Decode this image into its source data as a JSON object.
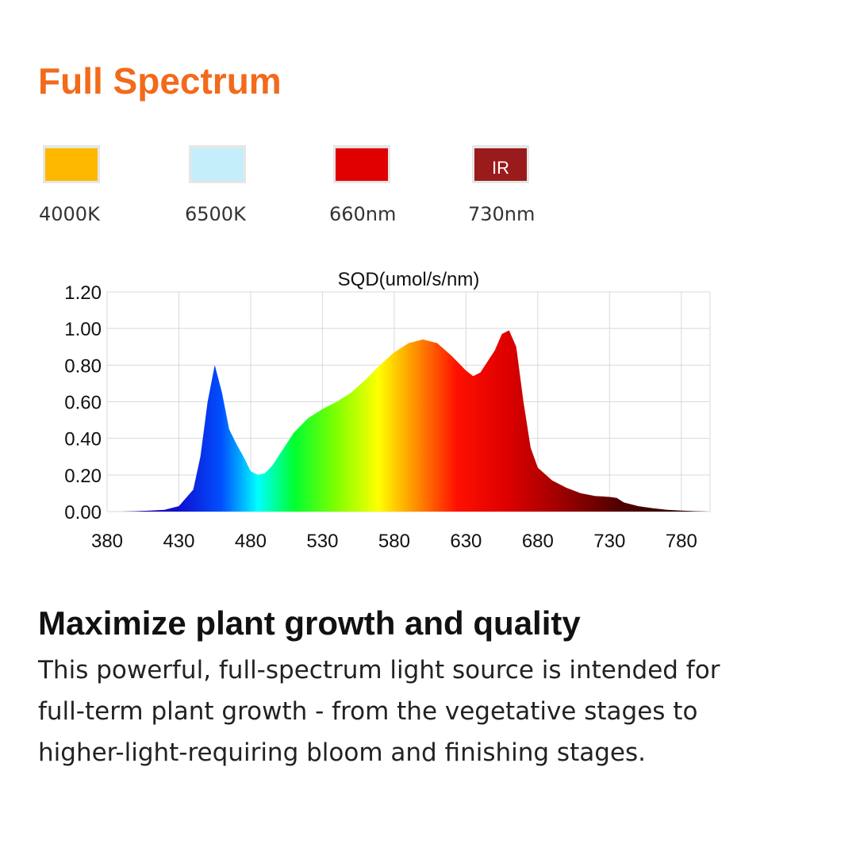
{
  "header": {
    "title": "Full Spectrum"
  },
  "legend": [
    {
      "label": "4000K",
      "color": "#ffb800"
    },
    {
      "label": "6500K",
      "color": "#c5eefb"
    },
    {
      "label": "660nm",
      "color": "#e00000"
    },
    {
      "label": "730nm",
      "color": "#9a1b1b",
      "badge": "IR"
    }
  ],
  "chart_data": {
    "type": "area",
    "title": "SQD(umol/s/nm)",
    "x": [
      380,
      390,
      400,
      410,
      420,
      430,
      440,
      445,
      450,
      455,
      460,
      465,
      470,
      475,
      480,
      485,
      490,
      495,
      500,
      510,
      520,
      530,
      540,
      550,
      560,
      570,
      580,
      590,
      600,
      610,
      620,
      630,
      635,
      640,
      650,
      655,
      660,
      665,
      670,
      675,
      680,
      690,
      700,
      710,
      720,
      730,
      735,
      740,
      750,
      760,
      770,
      780,
      790,
      800
    ],
    "values": [
      0,
      0,
      0.002,
      0.005,
      0.01,
      0.03,
      0.12,
      0.3,
      0.6,
      0.8,
      0.65,
      0.45,
      0.37,
      0.3,
      0.22,
      0.2,
      0.21,
      0.25,
      0.31,
      0.43,
      0.51,
      0.56,
      0.6,
      0.65,
      0.72,
      0.8,
      0.87,
      0.92,
      0.94,
      0.92,
      0.85,
      0.77,
      0.74,
      0.76,
      0.88,
      0.97,
      0.99,
      0.9,
      0.6,
      0.35,
      0.24,
      0.17,
      0.13,
      0.1,
      0.085,
      0.08,
      0.075,
      0.05,
      0.03,
      0.018,
      0.01,
      0.005,
      0.002,
      0
    ],
    "xlim": [
      380,
      800
    ],
    "xticks": [
      380,
      430,
      480,
      530,
      580,
      630,
      680,
      730,
      780
    ],
    "ylim": [
      0,
      1.2
    ],
    "yticks": [
      {
        "value": 0,
        "label": "0.00"
      },
      {
        "value": 0.2,
        "label": "0.20"
      },
      {
        "value": 0.4,
        "label": "0.40"
      },
      {
        "value": 0.6,
        "label": "0.60"
      },
      {
        "value": 0.8,
        "label": "0.80"
      },
      {
        "value": 1,
        "label": "1.00"
      },
      {
        "value": 1.2,
        "label": "1.20"
      }
    ],
    "grid": true
  },
  "section": {
    "heading": "Maximize plant growth and quality",
    "body": [
      "This powerful, full-spectrum light source is intended for",
      "full-term plant growth - from the vegetative stages to",
      "higher-light-requiring bloom and finishing stages."
    ]
  }
}
